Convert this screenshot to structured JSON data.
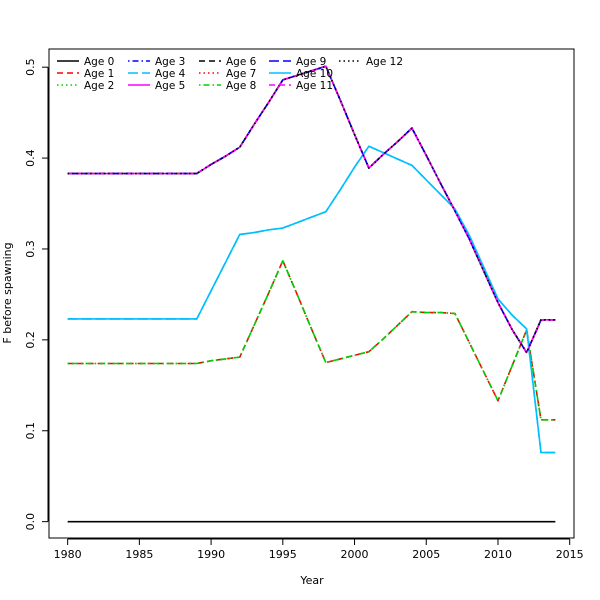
{
  "chart_data": {
    "type": "line",
    "title": "",
    "xlabel": "Year",
    "ylabel": "F before spawning",
    "xlim": [
      1978.7,
      2015.3
    ],
    "ylim": [
      -0.018,
      0.52
    ],
    "xticks": [
      1980,
      1985,
      1990,
      1995,
      2000,
      2005,
      2010,
      2015
    ],
    "yticks": [
      0.0,
      0.1,
      0.2,
      0.3,
      0.4,
      0.5
    ],
    "grid": false,
    "legend_position": "top-left",
    "x": [
      1980,
      1981,
      1982,
      1983,
      1984,
      1985,
      1986,
      1987,
      1988,
      1989,
      1990,
      1991,
      1992,
      1993,
      1994,
      1995,
      1996,
      1997,
      1998,
      1999,
      2000,
      2001,
      2002,
      2003,
      2004,
      2005,
      2006,
      2007,
      2008,
      2009,
      2010,
      2011,
      2012,
      2013,
      2014
    ],
    "series": [
      {
        "name": "Age 0",
        "color": "#000000",
        "dash": "solid",
        "values": [
          0,
          0,
          0,
          0,
          0,
          0,
          0,
          0,
          0,
          0,
          0,
          0,
          0,
          0,
          0,
          0,
          0,
          0,
          0,
          0,
          0,
          0,
          0,
          0,
          0,
          0,
          0,
          0,
          0,
          0,
          0,
          0,
          0,
          0,
          0
        ]
      },
      {
        "name": "Age 1",
        "color": "#ff0000",
        "dash": "dashed",
        "values": [
          0.174,
          0.174,
          0.174,
          0.174,
          0.174,
          0.174,
          0.174,
          0.174,
          0.174,
          0.174,
          0.177,
          0.179,
          0.181,
          0.216,
          0.251,
          0.287,
          0.25,
          0.212,
          0.175,
          0.179,
          0.183,
          0.187,
          0.201,
          0.216,
          0.231,
          0.23,
          0.23,
          0.229,
          0.197,
          0.165,
          0.133,
          0.172,
          0.211,
          0.112,
          0.112
        ]
      },
      {
        "name": "Age 2",
        "color": "#00cd00",
        "dash": "dotted",
        "values": [
          0.174,
          0.174,
          0.174,
          0.174,
          0.174,
          0.174,
          0.174,
          0.174,
          0.174,
          0.174,
          0.177,
          0.179,
          0.181,
          0.216,
          0.251,
          0.287,
          0.25,
          0.212,
          0.175,
          0.179,
          0.183,
          0.187,
          0.201,
          0.216,
          0.231,
          0.23,
          0.23,
          0.229,
          0.197,
          0.165,
          0.133,
          0.172,
          0.211,
          0.112,
          0.112
        ]
      },
      {
        "name": "Age 3",
        "color": "#0000ff",
        "dash": "dotdash",
        "values": [
          0.383,
          0.383,
          0.383,
          0.383,
          0.383,
          0.383,
          0.383,
          0.383,
          0.383,
          0.383,
          0.393,
          0.402,
          0.412,
          0.437,
          0.461,
          0.486,
          0.491,
          0.496,
          0.501,
          0.464,
          0.426,
          0.389,
          0.404,
          0.418,
          0.433,
          0.403,
          0.372,
          0.342,
          0.311,
          0.276,
          0.241,
          0.211,
          0.186,
          0.222,
          0.222
        ]
      },
      {
        "name": "Age 4",
        "color": "#00bfff",
        "dash": "longdash",
        "values": [
          0.223,
          0.223,
          0.223,
          0.223,
          0.223,
          0.223,
          0.223,
          0.223,
          0.223,
          0.223,
          0.254,
          0.285,
          0.316,
          0.318,
          0.321,
          0.323,
          0.329,
          0.335,
          0.341,
          0.365,
          0.39,
          0.413,
          0.406,
          0.399,
          0.392,
          0.376,
          0.36,
          0.344,
          0.315,
          0.28,
          0.245,
          0.227,
          0.212,
          0.076,
          0.076
        ]
      },
      {
        "name": "Age 5",
        "color": "#ff00ff",
        "dash": "solid",
        "values": [
          0.383,
          0.383,
          0.383,
          0.383,
          0.383,
          0.383,
          0.383,
          0.383,
          0.383,
          0.383,
          0.393,
          0.402,
          0.412,
          0.437,
          0.461,
          0.486,
          0.491,
          0.496,
          0.501,
          0.464,
          0.426,
          0.389,
          0.404,
          0.418,
          0.433,
          0.403,
          0.372,
          0.342,
          0.311,
          0.276,
          0.241,
          0.211,
          0.186,
          0.222,
          0.222
        ]
      },
      {
        "name": "Age 6",
        "color": "#000000",
        "dash": "dashed",
        "values": [
          0.383,
          0.383,
          0.383,
          0.383,
          0.383,
          0.383,
          0.383,
          0.383,
          0.383,
          0.383,
          0.393,
          0.402,
          0.412,
          0.437,
          0.461,
          0.486,
          0.491,
          0.496,
          0.501,
          0.464,
          0.426,
          0.389,
          0.404,
          0.418,
          0.433,
          0.403,
          0.372,
          0.342,
          0.311,
          0.276,
          0.241,
          0.211,
          0.186,
          0.222,
          0.222
        ]
      },
      {
        "name": "Age 7",
        "color": "#ff0000",
        "dash": "dotted",
        "values": [
          0.383,
          0.383,
          0.383,
          0.383,
          0.383,
          0.383,
          0.383,
          0.383,
          0.383,
          0.383,
          0.393,
          0.402,
          0.412,
          0.437,
          0.461,
          0.486,
          0.491,
          0.496,
          0.501,
          0.464,
          0.426,
          0.389,
          0.404,
          0.418,
          0.433,
          0.403,
          0.372,
          0.342,
          0.311,
          0.276,
          0.241,
          0.211,
          0.186,
          0.222,
          0.222
        ]
      },
      {
        "name": "Age 8",
        "color": "#00cd00",
        "dash": "dotdash",
        "values": [
          0.174,
          0.174,
          0.174,
          0.174,
          0.174,
          0.174,
          0.174,
          0.174,
          0.174,
          0.174,
          0.177,
          0.179,
          0.181,
          0.216,
          0.251,
          0.287,
          0.25,
          0.212,
          0.175,
          0.179,
          0.183,
          0.187,
          0.201,
          0.216,
          0.231,
          0.23,
          0.23,
          0.229,
          0.197,
          0.165,
          0.133,
          0.172,
          0.211,
          0.112,
          0.112
        ]
      },
      {
        "name": "Age 9",
        "color": "#0000ff",
        "dash": "longdash",
        "values": [
          0.383,
          0.383,
          0.383,
          0.383,
          0.383,
          0.383,
          0.383,
          0.383,
          0.383,
          0.383,
          0.393,
          0.402,
          0.412,
          0.437,
          0.461,
          0.486,
          0.491,
          0.496,
          0.501,
          0.464,
          0.426,
          0.389,
          0.404,
          0.418,
          0.433,
          0.403,
          0.372,
          0.342,
          0.311,
          0.276,
          0.241,
          0.211,
          0.186,
          0.222,
          0.222
        ]
      },
      {
        "name": "Age 10",
        "color": "#00bfff",
        "dash": "solid",
        "values": [
          0.223,
          0.223,
          0.223,
          0.223,
          0.223,
          0.223,
          0.223,
          0.223,
          0.223,
          0.223,
          0.254,
          0.285,
          0.316,
          0.318,
          0.321,
          0.323,
          0.329,
          0.335,
          0.341,
          0.365,
          0.39,
          0.413,
          0.406,
          0.399,
          0.392,
          0.376,
          0.36,
          0.344,
          0.315,
          0.28,
          0.245,
          0.227,
          0.212,
          0.076,
          0.076
        ]
      },
      {
        "name": "Age 11",
        "color": "#ff00ff",
        "dash": "dashed",
        "values": [
          0.383,
          0.383,
          0.383,
          0.383,
          0.383,
          0.383,
          0.383,
          0.383,
          0.383,
          0.383,
          0.393,
          0.402,
          0.412,
          0.437,
          0.461,
          0.486,
          0.491,
          0.496,
          0.501,
          0.464,
          0.426,
          0.389,
          0.404,
          0.418,
          0.433,
          0.403,
          0.372,
          0.342,
          0.311,
          0.276,
          0.241,
          0.211,
          0.186,
          0.222,
          0.222
        ]
      },
      {
        "name": "Age 12",
        "color": "#000000",
        "dash": "dotted",
        "values": [
          0.383,
          0.383,
          0.383,
          0.383,
          0.383,
          0.383,
          0.383,
          0.383,
          0.383,
          0.383,
          0.393,
          0.402,
          0.412,
          0.437,
          0.461,
          0.486,
          0.491,
          0.496,
          0.501,
          0.464,
          0.426,
          0.389,
          0.404,
          0.418,
          0.433,
          0.403,
          0.372,
          0.342,
          0.311,
          0.276,
          0.241,
          0.211,
          0.186,
          0.222,
          0.222
        ]
      }
    ]
  }
}
